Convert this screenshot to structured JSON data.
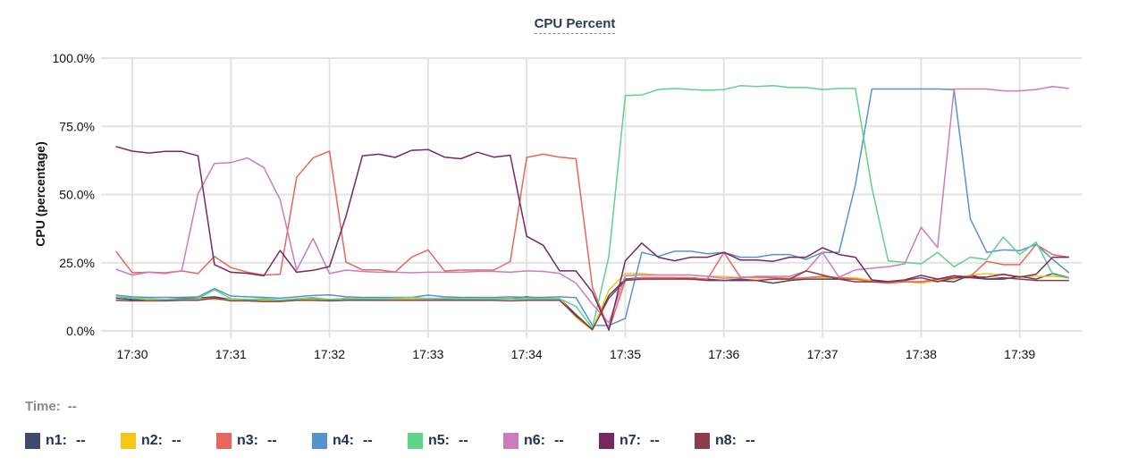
{
  "chart_data": {
    "type": "line",
    "title": "CPU Percent",
    "xlabel": "",
    "ylabel": "CPU (percentage)",
    "ylim": [
      0,
      100
    ],
    "yticks": [
      "0.0%",
      "25.0%",
      "50.0%",
      "75.0%",
      "100.0%"
    ],
    "ytick_values": [
      0,
      25,
      50,
      75,
      100
    ],
    "xticks": [
      "17:30",
      "17:31",
      "17:32",
      "17:33",
      "17:34",
      "17:35",
      "17:36",
      "17:37",
      "17:38",
      "17:39"
    ],
    "grid": true,
    "x": [
      "17:29:50",
      "17:30:00",
      "17:30:10",
      "17:30:20",
      "17:30:30",
      "17:30:40",
      "17:30:50",
      "17:31:00",
      "17:31:10",
      "17:31:20",
      "17:31:30",
      "17:31:40",
      "17:31:50",
      "17:32:00",
      "17:32:10",
      "17:32:20",
      "17:32:30",
      "17:32:40",
      "17:32:50",
      "17:33:00",
      "17:33:10",
      "17:33:20",
      "17:33:30",
      "17:33:40",
      "17:33:50",
      "17:34:00",
      "17:34:10",
      "17:34:20",
      "17:34:30",
      "17:34:40",
      "17:34:50",
      "17:35:00",
      "17:35:10",
      "17:35:20",
      "17:35:30",
      "17:35:40",
      "17:35:50",
      "17:36:00",
      "17:36:10",
      "17:36:20",
      "17:36:30",
      "17:36:40",
      "17:36:50",
      "17:37:00",
      "17:37:10",
      "17:37:20",
      "17:37:30",
      "17:37:40",
      "17:37:50",
      "17:38:00",
      "17:38:10",
      "17:38:20",
      "17:38:30",
      "17:38:40",
      "17:38:50",
      "17:39:00",
      "17:39:10",
      "17:39:20",
      "17:39:30"
    ],
    "series": [
      {
        "name": "n1",
        "color": "#3d4a6b",
        "values": [
          12,
          11.5,
          11.5,
          11.5,
          11.8,
          12,
          12.5,
          11.5,
          11.5,
          11.5,
          11,
          11.5,
          12,
          11.5,
          11.8,
          11.8,
          11.8,
          11.8,
          11.8,
          11.8,
          11.8,
          11.8,
          11.8,
          11.8,
          11.8,
          12.5,
          11.8,
          11.8,
          6,
          0.5,
          13,
          19,
          19.5,
          19.5,
          19.5,
          19,
          19,
          18.5,
          18.5,
          18.5,
          17.5,
          18.5,
          19,
          19,
          19,
          19,
          18.5,
          18,
          18,
          18,
          18.5,
          18,
          20.5,
          19,
          19,
          20,
          19,
          21,
          19.5
        ]
      },
      {
        "name": "n2",
        "color": "#f5c518",
        "values": [
          12.5,
          12,
          11.5,
          11.5,
          11.5,
          11.8,
          11.5,
          11.5,
          11,
          11.2,
          11,
          11.5,
          11.5,
          11.2,
          12,
          12,
          11.8,
          11.8,
          11.8,
          11.8,
          12,
          12,
          11.8,
          11.8,
          11.8,
          11.5,
          11.8,
          11.8,
          5,
          0.3,
          15,
          21,
          21,
          20.5,
          20.5,
          20.5,
          20,
          20,
          19.5,
          19.5,
          19.5,
          19.5,
          19.5,
          19.5,
          19.5,
          19.5,
          18.5,
          18,
          18,
          17.5,
          18.5,
          19,
          20.5,
          21,
          20.5,
          20,
          20,
          20,
          19.5
        ]
      },
      {
        "name": "n3",
        "color": "#e5675e",
        "values": [
          29.2,
          21.3,
          21.5,
          21.3,
          22,
          21,
          27.3,
          23.2,
          21.5,
          20.5,
          20.8,
          56.3,
          63.4,
          65.9,
          25.2,
          22.4,
          22.4,
          21.6,
          27,
          29.7,
          22,
          22.3,
          22.3,
          22.3,
          25.4,
          63.6,
          64.8,
          63.7,
          63.1,
          16,
          0.5,
          18.5,
          19.5,
          19.5,
          19.5,
          19.5,
          19,
          28.8,
          19.7,
          19.7,
          19.5,
          19,
          19.5,
          20,
          19.5,
          19,
          18,
          17.5,
          18,
          18,
          19,
          19.5,
          20,
          25.5,
          24.3,
          24.3,
          31.7,
          28,
          27
        ]
      },
      {
        "name": "n4",
        "color": "#5593cf",
        "values": [
          13.1,
          12.5,
          12.3,
          12.3,
          12.3,
          12.5,
          15.5,
          12.8,
          12.5,
          12.3,
          12,
          12.5,
          13,
          13.2,
          12.5,
          12.3,
          12.3,
          12.3,
          12.3,
          13.1,
          12.5,
          12.3,
          12.3,
          12.3,
          12.5,
          12.3,
          12.3,
          12.5,
          12.2,
          2,
          2,
          4.6,
          28.8,
          27.3,
          29.2,
          29.2,
          28.3,
          28.8,
          27,
          27,
          28,
          28,
          26.2,
          28.8,
          28.8,
          53.6,
          88.7,
          88.7,
          88.7,
          88.7,
          88.7,
          88.5,
          41,
          28.8,
          29.7,
          29.4,
          31.7,
          26.2,
          21.3
        ]
      },
      {
        "name": "n5",
        "color": "#5fd386",
        "values": [
          12.5,
          12,
          11.8,
          11.5,
          11.5,
          11.8,
          15.1,
          11.8,
          11.5,
          11.8,
          11.3,
          11.8,
          12.2,
          11.5,
          11.8,
          11.8,
          11.8,
          12,
          12.3,
          11.8,
          12,
          11.8,
          11.8,
          11.8,
          11.8,
          11.8,
          11.8,
          11.8,
          9,
          1,
          27.3,
          86.3,
          86.5,
          88.5,
          88.9,
          88.5,
          88.2,
          88.5,
          89.9,
          89.6,
          89.9,
          89.2,
          89.2,
          88.5,
          88.9,
          88.9,
          52.5,
          25.7,
          25.1,
          24.6,
          28.8,
          23.5,
          27,
          26.2,
          34.4,
          28,
          32.6,
          20.8,
          19.3
        ]
      },
      {
        "name": "n6",
        "color": "#cc7bbd",
        "values": [
          22.6,
          20.5,
          21.5,
          21,
          22,
          50.3,
          61.4,
          61.7,
          63.4,
          59.9,
          48.1,
          22.3,
          33.9,
          21,
          22.3,
          21.8,
          21.5,
          21.5,
          21.3,
          21.5,
          21.5,
          21.5,
          21.8,
          21.8,
          21.5,
          22,
          21.8,
          21.1,
          17.5,
          9.8,
          3,
          20.2,
          20.5,
          20.5,
          20.5,
          20.5,
          20,
          19.3,
          19.5,
          20,
          20,
          20,
          22,
          28.8,
          19.7,
          22.4,
          23,
          23.5,
          24.6,
          38,
          30.6,
          88.7,
          88.7,
          88.7,
          88,
          88,
          88.5,
          89.6,
          88.9
        ]
      },
      {
        "name": "n7",
        "color": "#76295f",
        "values": [
          67.6,
          65.9,
          65.2,
          65.8,
          65.8,
          64.2,
          24.3,
          21.5,
          21.1,
          20.2,
          29.5,
          21.5,
          22.2,
          23.6,
          42,
          64.2,
          64.8,
          63.6,
          66.2,
          66.5,
          63.7,
          63.1,
          65.5,
          63.7,
          64.4,
          34.7,
          31.4,
          22,
          22,
          14.2,
          0.3,
          25.7,
          32.2,
          27,
          25.7,
          27,
          27,
          28.8,
          26,
          26,
          25.5,
          27,
          27,
          30.5,
          28,
          27,
          18.7,
          18.1,
          18.7,
          20.4,
          19,
          20.2,
          19.7,
          19.7,
          20.8,
          19.7,
          20.8,
          27,
          27
        ]
      },
      {
        "name": "n8",
        "color": "#8e3b4d",
        "values": [
          11.2,
          11,
          11,
          11,
          11.2,
          11.2,
          12,
          11,
          11,
          10.8,
          10.8,
          11.2,
          11.2,
          11,
          11.2,
          11.2,
          11.2,
          11.2,
          11.2,
          11.2,
          11.2,
          11.2,
          11.2,
          11.2,
          11,
          11.2,
          11.2,
          11.2,
          5.5,
          0.5,
          12,
          18.5,
          19,
          19,
          19,
          19,
          18.5,
          18.5,
          19,
          18.5,
          19,
          19,
          22,
          20.5,
          19,
          18,
          18,
          18,
          18.5,
          19.5,
          18,
          19.5,
          19.5,
          19,
          19.5,
          19,
          18.5,
          18.5,
          18.5
        ]
      }
    ]
  },
  "hover": {
    "time_label": "Time:",
    "time_value": "--"
  },
  "legend": [
    {
      "label": "n1:",
      "value": "--"
    },
    {
      "label": "n2:",
      "value": "--"
    },
    {
      "label": "n3:",
      "value": "--"
    },
    {
      "label": "n4:",
      "value": "--"
    },
    {
      "label": "n5:",
      "value": "--"
    },
    {
      "label": "n6:",
      "value": "--"
    },
    {
      "label": "n7:",
      "value": "--"
    },
    {
      "label": "n8:",
      "value": "--"
    }
  ]
}
